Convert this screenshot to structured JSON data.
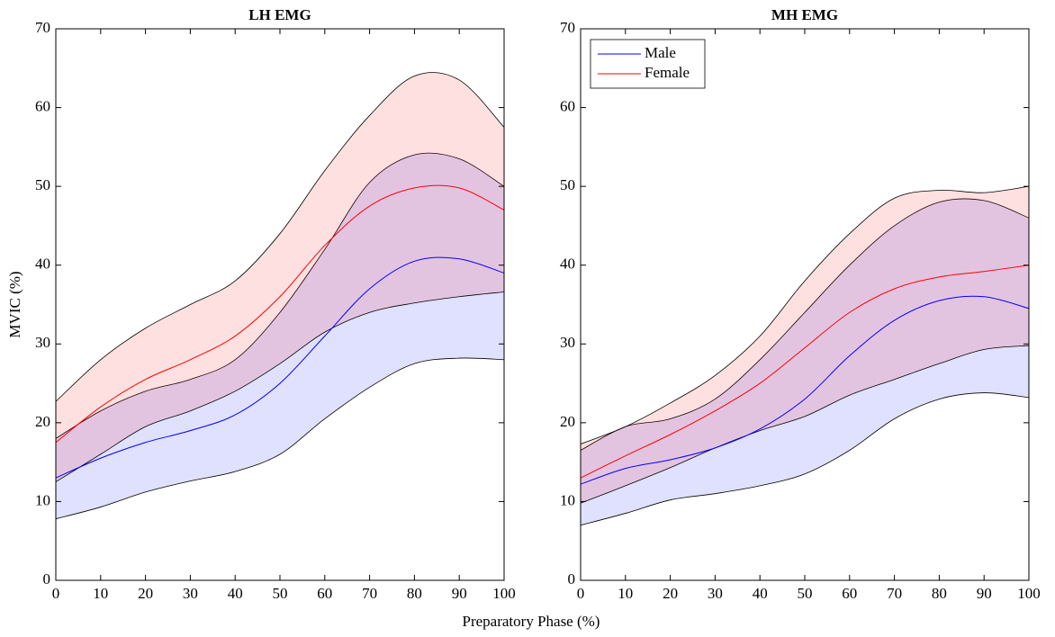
{
  "xlabel": "Preparatory Phase (%)",
  "chart_data": [
    {
      "type": "band-line",
      "title": "LH EMG",
      "ylabel": "MVIC (%)",
      "x": [
        0,
        10,
        20,
        30,
        40,
        50,
        60,
        70,
        80,
        90,
        100
      ],
      "xlim": [
        0,
        100
      ],
      "xticks": [
        0,
        10,
        20,
        30,
        40,
        50,
        60,
        70,
        80,
        90,
        100
      ],
      "ylim": [
        0,
        70
      ],
      "yticks": [
        0,
        10,
        20,
        30,
        40,
        50,
        60,
        70
      ],
      "legend": false,
      "series": [
        {
          "name": "Male",
          "color": "#0000ff",
          "values": [
            13,
            15.5,
            17.5,
            19,
            21,
            25,
            31,
            37,
            40.5,
            40.8,
            39
          ],
          "upper": [
            18,
            21.5,
            24,
            25.5,
            28,
            34,
            42,
            50.5,
            54,
            53.5,
            50
          ],
          "lower": [
            7.8,
            9.3,
            11.2,
            12.6,
            13.8,
            16,
            20.5,
            24.5,
            27.5,
            28.2,
            28
          ]
        },
        {
          "name": "Female",
          "color": "#ff0000",
          "values": [
            17.5,
            22,
            25.5,
            28,
            31,
            36,
            42.5,
            47.5,
            49.8,
            49.8,
            47
          ],
          "upper": [
            22.7,
            28,
            32,
            35,
            38,
            44,
            52,
            59,
            64,
            63.5,
            57.5
          ],
          "lower": [
            12.5,
            16,
            19.5,
            21.5,
            24,
            27.5,
            31.5,
            34,
            35.2,
            36,
            36.6
          ]
        }
      ]
    },
    {
      "type": "band-line",
      "title": "MH EMG",
      "x": [
        0,
        10,
        20,
        30,
        40,
        50,
        60,
        70,
        80,
        90,
        100
      ],
      "xlim": [
        0,
        100
      ],
      "xticks": [
        0,
        10,
        20,
        30,
        40,
        50,
        60,
        70,
        80,
        90,
        100
      ],
      "ylim": [
        0,
        70
      ],
      "yticks": [
        0,
        10,
        20,
        30,
        40,
        50,
        60,
        70
      ],
      "legend": "upper left",
      "series": [
        {
          "name": "Male",
          "color": "#0000ff",
          "values": [
            12.2,
            14.2,
            15.3,
            16.8,
            19.2,
            23,
            28.5,
            33,
            35.5,
            36,
            34.5
          ],
          "upper": [
            16.5,
            19.5,
            20.5,
            23,
            28,
            34,
            40,
            45,
            48,
            48.2,
            46
          ],
          "lower": [
            7,
            8.5,
            10.2,
            11,
            12,
            13.5,
            16.5,
            20.5,
            23,
            23.8,
            23.2
          ]
        },
        {
          "name": "Female",
          "color": "#ff0000",
          "values": [
            13,
            15.8,
            18.5,
            21.5,
            25,
            29.5,
            34,
            37,
            38.5,
            39.2,
            40
          ],
          "upper": [
            17.3,
            19.5,
            22.5,
            26,
            31,
            38,
            44,
            48.5,
            49.5,
            49.2,
            50
          ],
          "lower": [
            9.8,
            12,
            14.3,
            16.8,
            19,
            20.8,
            23.5,
            25.5,
            27.5,
            29.3,
            29.8
          ]
        }
      ]
    }
  ]
}
